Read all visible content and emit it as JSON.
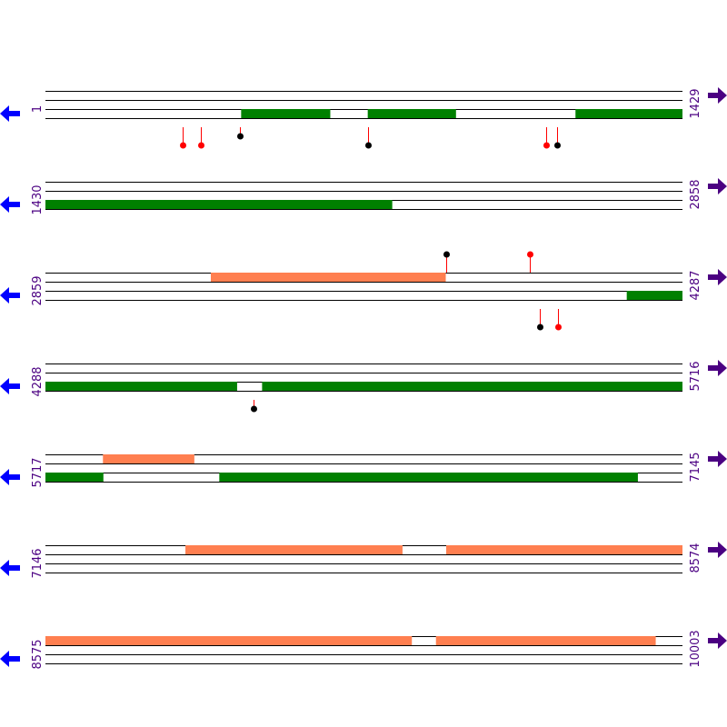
{
  "colors": {
    "track_line": "#000000",
    "green": "#008000",
    "salmon": "#ff7f50",
    "marker_red": "#ff0000",
    "marker_black": "#000000",
    "arrow_left": "#0000ff",
    "arrow_right": "#4b0082",
    "label": "#4b0082"
  },
  "icons": {
    "left": "arrow-left-icon",
    "right": "arrow-right-icon"
  },
  "rows": [
    {
      "start": 1,
      "end": 1429,
      "start_label": "1",
      "end_label": "1429",
      "segments": [
        {
          "track": 3,
          "color": "green",
          "from": 440,
          "to": 639
        },
        {
          "track": 3,
          "color": "green",
          "from": 724,
          "to": 921
        },
        {
          "track": 3,
          "color": "green",
          "from": 1190,
          "to": 1429
        }
      ],
      "markers": [
        {
          "pos": 309,
          "dir": "down",
          "len": 20,
          "color": "marker_red"
        },
        {
          "pos": 349,
          "dir": "down",
          "len": 20,
          "color": "marker_red"
        },
        {
          "pos": 437,
          "dir": "down",
          "len": 10,
          "color": "marker_black"
        },
        {
          "pos": 724,
          "dir": "down",
          "len": 20,
          "color": "marker_black"
        },
        {
          "pos": 1124,
          "dir": "down",
          "len": 20,
          "color": "marker_red"
        },
        {
          "pos": 1148,
          "dir": "down",
          "len": 20,
          "color": "marker_black"
        }
      ]
    },
    {
      "start": 1430,
      "end": 2858,
      "start_label": "1430",
      "end_label": "2858",
      "segments": [
        {
          "track": 3,
          "color": "green",
          "from": 1430,
          "to": 2207
        }
      ],
      "markers": []
    },
    {
      "start": 2859,
      "end": 4287,
      "start_label": "2859",
      "end_label": "4287",
      "segments": [
        {
          "track": 1,
          "color": "salmon",
          "from": 3230,
          "to": 3756
        },
        {
          "track": 3,
          "color": "green",
          "from": 4163,
          "to": 4287
        }
      ],
      "markers": [
        {
          "pos": 3758,
          "dir": "up",
          "len": 20,
          "color": "marker_black"
        },
        {
          "pos": 3945,
          "dir": "up",
          "len": 20,
          "color": "marker_red"
        },
        {
          "pos": 3967,
          "dir": "down",
          "len": 20,
          "color": "marker_black"
        },
        {
          "pos": 4009,
          "dir": "down",
          "len": 20,
          "color": "marker_red"
        }
      ]
    },
    {
      "start": 4288,
      "end": 5716,
      "start_label": "4288",
      "end_label": "5716",
      "segments": [
        {
          "track": 3,
          "color": "green",
          "from": 4288,
          "to": 4717
        },
        {
          "track": 3,
          "color": "green",
          "from": 4774,
          "to": 5716
        }
      ],
      "markers": [
        {
          "pos": 4754,
          "dir": "down",
          "len": 10,
          "color": "marker_black"
        }
      ]
    },
    {
      "start": 5717,
      "end": 7145,
      "start_label": "5717",
      "end_label": "7145",
      "segments": [
        {
          "track": 1,
          "color": "salmon",
          "from": 5846,
          "to": 6050
        },
        {
          "track": 3,
          "color": "green",
          "from": 5717,
          "to": 5846
        },
        {
          "track": 3,
          "color": "green",
          "from": 6107,
          "to": 7045
        }
      ],
      "markers": []
    },
    {
      "start": 7146,
      "end": 8574,
      "start_label": "7146",
      "end_label": "8574",
      "segments": [
        {
          "track": 1,
          "color": "salmon",
          "from": 7460,
          "to": 7946
        },
        {
          "track": 1,
          "color": "salmon",
          "from": 8045,
          "to": 8574
        }
      ],
      "markers": []
    },
    {
      "start": 8575,
      "end": 10003,
      "start_label": "8575",
      "end_label": "10003",
      "segments": [
        {
          "track": 1,
          "color": "salmon",
          "from": 8575,
          "to": 9396
        },
        {
          "track": 1,
          "color": "salmon",
          "from": 9451,
          "to": 9943
        }
      ],
      "markers": []
    }
  ]
}
